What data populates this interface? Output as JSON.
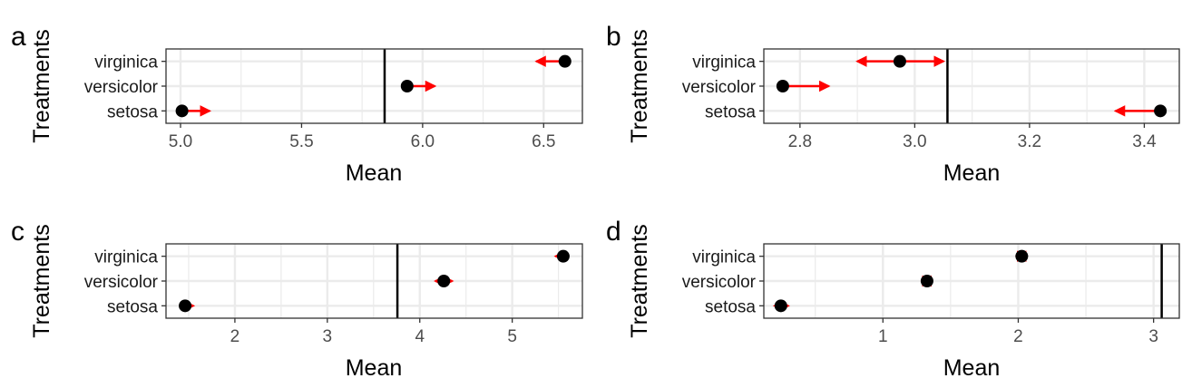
{
  "chart_data": [
    {
      "type": "dot",
      "panel": "a",
      "categories": [
        "setosa",
        "versicolor",
        "virginica"
      ],
      "values": [
        5.006,
        5.936,
        6.588
      ],
      "arrow_to": [
        5.12,
        6.05,
        6.47
      ],
      "reference_line": 5.843,
      "xlabel": "Mean",
      "ylabel": "Treatments",
      "xlim": [
        4.94,
        6.66
      ],
      "xticks": [
        5.0,
        5.5,
        6.0,
        6.5
      ],
      "tick_labels": [
        "5.0",
        "5.5",
        "6.0",
        "6.5"
      ],
      "grid": true
    },
    {
      "type": "dot",
      "panel": "b",
      "categories": [
        "setosa",
        "versicolor",
        "virginica"
      ],
      "values": [
        3.428,
        2.77,
        2.974
      ],
      "arrow_to": [
        3.35,
        2.85,
        2.9
      ],
      "arrow_both": [
        false,
        false,
        true
      ],
      "arrow_other_end": [
        null,
        null,
        3.05
      ],
      "reference_line": 3.057,
      "xlabel": "Mean",
      "ylabel": "Treatments",
      "xlim": [
        2.737,
        3.461
      ],
      "xticks": [
        2.8,
        3.0,
        3.2,
        3.4
      ],
      "tick_labels": [
        "2.8",
        "3.0",
        "3.2",
        "3.4"
      ],
      "grid": true
    },
    {
      "type": "dot",
      "panel": "c",
      "categories": [
        "setosa",
        "versicolor",
        "virginica"
      ],
      "values": [
        1.462,
        4.26,
        5.552
      ],
      "arrow_to": [
        1.55,
        4.35,
        5.47
      ],
      "arrow_both": [
        false,
        true,
        false
      ],
      "arrow_other_end": [
        null,
        4.17,
        null
      ],
      "reference_line": 3.758,
      "xlabel": "Mean",
      "ylabel": "Treatments",
      "xlim": [
        1.255,
        5.759
      ],
      "xticks": [
        2,
        3,
        4,
        5
      ],
      "tick_labels": [
        "2",
        "3",
        "4",
        "5"
      ],
      "grid": true
    },
    {
      "type": "dot",
      "panel": "d",
      "categories": [
        "setosa",
        "versicolor",
        "virginica"
      ],
      "values": [
        0.246,
        1.326,
        2.026
      ],
      "arrow_to": [
        0.3,
        1.36,
        1.99
      ],
      "arrow_both": [
        true,
        true,
        true
      ],
      "arrow_other_end": [
        0.2,
        1.29,
        2.06
      ],
      "reference_line": 3.06,
      "xlabel": "Mean",
      "ylabel": "Treatments",
      "xlim": [
        0.12,
        3.19
      ],
      "xticks": [
        1,
        2,
        3
      ],
      "tick_labels": [
        "1",
        "2",
        "3"
      ],
      "grid": true
    }
  ],
  "colors": {
    "arrow": "#ff0000",
    "point": "#000000",
    "reference_line": "#000000",
    "grid": "#ebebeb",
    "panel_border": "#333333"
  }
}
